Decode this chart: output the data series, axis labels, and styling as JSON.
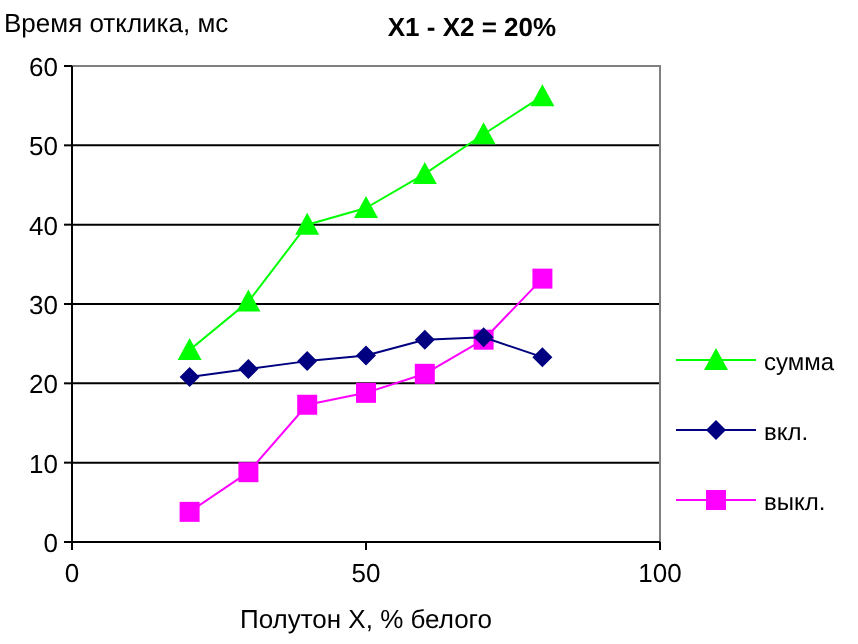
{
  "chart_data": {
    "type": "line",
    "title": "X1 - X2 = 20%",
    "ylabel": "Время отклика, мс",
    "xlabel": "Полутон X, % белого",
    "x": [
      20,
      30,
      40,
      50,
      60,
      70,
      80
    ],
    "series": [
      {
        "name": "сумма",
        "color": "#00ff00",
        "marker": "triangle",
        "values": [
          24.2,
          30.3,
          40,
          42.1,
          46.4,
          51.4,
          56.2
        ]
      },
      {
        "name": "вкл.",
        "color": "#000080",
        "marker": "diamond",
        "values": [
          20.8,
          21.8,
          22.8,
          23.5,
          25.5,
          25.8,
          23.3
        ]
      },
      {
        "name": "выкл.",
        "color": "#ff00ff",
        "marker": "square",
        "values": [
          3.8,
          8.8,
          17.3,
          18.8,
          21.2,
          25.5,
          33.2
        ]
      }
    ],
    "xlim": [
      0,
      100
    ],
    "xticks": [
      0,
      50,
      100
    ],
    "ylim": [
      0,
      60
    ],
    "yticks": [
      0,
      10,
      20,
      30,
      40,
      50,
      60
    ],
    "grid": "y",
    "legend": "right"
  }
}
